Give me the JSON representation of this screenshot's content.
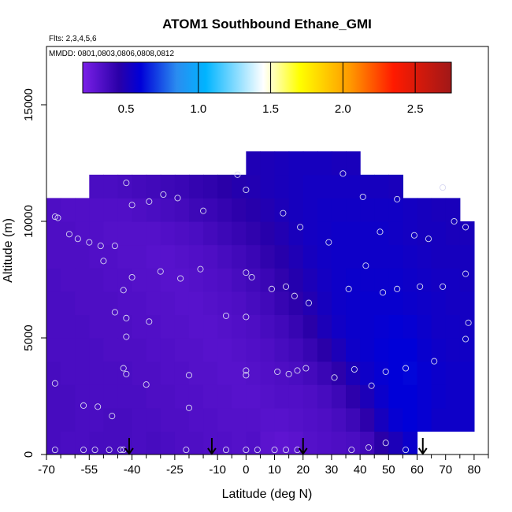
{
  "chart_data": {
    "type": "heatmap",
    "title": "ATOM1 Southbound Ethane_GMI",
    "flights_note": "Flts: 2,3,4,5,6",
    "dates_note": "MMDD: 0801,0803,0806,0808,0812",
    "xlabel": "Latitude (deg N)",
    "ylabel": "Altitude (m)",
    "xlim": [
      -70,
      85
    ],
    "ylim": [
      0,
      17500
    ],
    "x_ticks": [
      -70,
      -55,
      -40,
      -25,
      -10,
      0,
      10,
      20,
      30,
      40,
      50,
      60,
      70,
      80
    ],
    "x_tick_labels": [
      "-70",
      "-55",
      "-40",
      "-25",
      "-10",
      "0",
      "10",
      "20",
      "30",
      "40",
      "50",
      "60",
      "70",
      "80"
    ],
    "x_minor_ticks": [
      -65,
      -60,
      -50,
      -45,
      -35,
      -30,
      -20,
      -15,
      -5,
      5,
      15,
      25,
      35,
      45,
      55,
      65,
      75,
      85
    ],
    "y_ticks": [
      0,
      5000,
      10000,
      15000
    ],
    "y_tick_labels": [
      "0",
      "5000",
      "10000",
      "15000"
    ],
    "colorbar": {
      "min": 0.2,
      "max": 2.75,
      "ticks": [
        0.5,
        1.0,
        1.5,
        2.0,
        2.5
      ],
      "tick_labels": [
        "0.5",
        "1.0",
        "1.5",
        "2.0",
        "2.5"
      ],
      "divisions": [
        1.0,
        1.5,
        2.0,
        2.5
      ],
      "colors": [
        "#7b20e8",
        "#2a00a8",
        "#0000d8",
        "#2a8cf0",
        "#00b4ff",
        "#ffffff",
        "#ffff00",
        "#ff9900",
        "#ff1a00",
        "#a01818"
      ],
      "color_stops": [
        0.2,
        0.45,
        0.6,
        0.85,
        1.05,
        1.45,
        1.7,
        2.05,
        2.35,
        2.75
      ]
    },
    "latitude_bins": [
      -67.5,
      -62.5,
      -57.5,
      -52.5,
      -47.5,
      -42.5,
      -37.5,
      -32.5,
      -27.5,
      -22.5,
      -17.5,
      -12.5,
      -7.5,
      -2.5,
      2.5,
      7.5,
      12.5,
      17.5,
      22.5,
      27.5,
      32.5,
      37.5,
      42.5,
      47.5,
      52.5,
      57.5,
      62.5,
      67.5,
      72.5,
      77.5
    ],
    "altitude_bins": [
      500,
      1500,
      2500,
      3500,
      4500,
      5500,
      6500,
      7500,
      8500,
      9500,
      10500,
      11500,
      12500
    ],
    "field": [
      [
        0.36,
        0.35,
        0.35,
        0.36,
        0.36,
        0.36,
        0.35,
        0.36,
        0.35,
        0.34,
        0.34,
        0.33,
        0.33,
        0.32,
        0.33,
        0.3,
        0.29,
        0.3,
        0.32,
        0.33,
        0.34,
        0.35,
        0.38,
        0.45,
        0.5,
        0.56,
        null,
        null,
        null,
        null
      ],
      [
        0.36,
        0.36,
        0.35,
        0.35,
        0.36,
        0.36,
        0.35,
        0.35,
        0.34,
        0.34,
        0.33,
        0.33,
        0.32,
        0.32,
        0.32,
        0.31,
        0.31,
        0.32,
        0.33,
        0.34,
        0.36,
        0.39,
        0.44,
        0.52,
        0.58,
        0.6,
        0.58,
        0.55,
        0.55,
        0.55
      ],
      [
        0.36,
        0.36,
        0.35,
        0.35,
        0.35,
        0.35,
        0.35,
        0.34,
        0.34,
        0.33,
        0.33,
        0.32,
        0.32,
        0.31,
        0.31,
        0.32,
        0.33,
        0.33,
        0.34,
        0.36,
        0.39,
        0.44,
        0.5,
        0.56,
        0.6,
        0.6,
        0.58,
        0.56,
        0.55,
        0.55
      ],
      [
        0.36,
        0.35,
        0.35,
        0.35,
        0.35,
        0.35,
        0.34,
        0.34,
        0.33,
        0.33,
        0.32,
        0.32,
        0.31,
        0.31,
        0.32,
        0.33,
        0.34,
        0.35,
        0.37,
        0.4,
        0.44,
        0.5,
        0.55,
        0.58,
        0.6,
        0.61,
        0.58,
        0.56,
        0.55,
        0.55
      ],
      [
        0.35,
        0.35,
        0.35,
        0.35,
        0.34,
        0.34,
        0.34,
        0.33,
        0.33,
        0.32,
        0.32,
        0.31,
        0.31,
        0.32,
        0.33,
        0.34,
        0.36,
        0.38,
        0.41,
        0.45,
        0.5,
        0.55,
        0.57,
        0.59,
        0.6,
        0.6,
        0.57,
        0.55,
        0.54,
        0.54
      ],
      [
        0.35,
        0.35,
        0.35,
        0.34,
        0.34,
        0.34,
        0.33,
        0.33,
        0.32,
        0.32,
        0.31,
        0.31,
        0.32,
        0.33,
        0.34,
        0.36,
        0.38,
        0.41,
        0.45,
        0.5,
        0.54,
        0.56,
        0.57,
        0.58,
        0.59,
        0.58,
        0.56,
        0.54,
        0.54,
        0.53
      ],
      [
        0.35,
        0.35,
        0.34,
        0.34,
        0.34,
        0.33,
        0.33,
        0.32,
        0.32,
        0.31,
        0.31,
        0.32,
        0.33,
        0.34,
        0.36,
        0.38,
        0.41,
        0.44,
        0.48,
        0.52,
        0.55,
        0.56,
        0.57,
        0.57,
        0.57,
        0.56,
        0.55,
        0.54,
        0.53,
        0.53
      ],
      [
        0.35,
        0.34,
        0.34,
        0.34,
        0.33,
        0.33,
        0.32,
        0.32,
        0.31,
        0.31,
        0.32,
        0.33,
        0.34,
        0.36,
        0.38,
        0.4,
        0.43,
        0.47,
        0.5,
        0.53,
        0.55,
        0.56,
        0.56,
        0.56,
        0.56,
        0.55,
        0.54,
        0.53,
        0.53,
        0.52
      ],
      [
        0.34,
        0.34,
        0.34,
        0.33,
        0.33,
        0.32,
        0.32,
        0.31,
        0.31,
        0.32,
        0.33,
        0.34,
        0.36,
        0.38,
        0.4,
        0.43,
        0.46,
        0.49,
        0.52,
        0.54,
        0.55,
        0.55,
        0.55,
        0.55,
        0.55,
        0.54,
        0.53,
        0.52,
        0.52,
        0.52
      ],
      [
        0.34,
        0.34,
        0.33,
        0.33,
        0.32,
        0.32,
        0.32,
        0.32,
        0.33,
        0.34,
        0.35,
        0.37,
        0.39,
        0.41,
        0.43,
        0.46,
        0.48,
        0.51,
        0.53,
        0.54,
        0.55,
        0.55,
        0.55,
        0.55,
        0.54,
        0.53,
        0.52,
        0.52,
        0.51,
        0.51
      ],
      [
        0.34,
        0.33,
        0.33,
        0.33,
        0.33,
        0.33,
        0.34,
        0.35,
        0.36,
        0.37,
        0.39,
        0.4,
        0.42,
        0.44,
        0.46,
        0.48,
        0.5,
        0.52,
        0.53,
        0.54,
        0.54,
        0.54,
        0.54,
        0.54,
        0.54,
        0.53,
        0.52,
        0.51,
        0.51,
        null
      ],
      [
        null,
        null,
        null,
        0.35,
        0.35,
        0.36,
        0.37,
        0.38,
        0.39,
        0.4,
        0.42,
        0.43,
        0.45,
        0.47,
        0.48,
        0.5,
        0.51,
        0.52,
        0.53,
        0.53,
        0.53,
        0.53,
        0.52,
        0.52,
        0.51,
        null,
        null,
        null,
        null,
        null
      ],
      [
        null,
        null,
        null,
        null,
        null,
        null,
        null,
        null,
        null,
        null,
        null,
        null,
        null,
        null,
        0.49,
        0.5,
        0.51,
        0.52,
        0.52,
        0.52,
        0.51,
        0.51,
        null,
        null,
        null,
        null,
        null,
        null,
        null,
        null
      ]
    ],
    "samples": [
      [
        -67,
        200
      ],
      [
        -57,
        200
      ],
      [
        -53,
        200
      ],
      [
        -48,
        200
      ],
      [
        -44,
        200
      ],
      [
        -43,
        200
      ],
      [
        -21,
        200
      ],
      [
        -7,
        200
      ],
      [
        0,
        200
      ],
      [
        4,
        200
      ],
      [
        10,
        200
      ],
      [
        14,
        200
      ],
      [
        18,
        200
      ],
      [
        37,
        200
      ],
      [
        43,
        300
      ],
      [
        49,
        500
      ],
      [
        56,
        200
      ],
      [
        -67,
        3050
      ],
      [
        -57,
        2100
      ],
      [
        -52,
        2050
      ],
      [
        -47,
        1650
      ],
      [
        -43,
        3700
      ],
      [
        -42,
        3450
      ],
      [
        -35,
        3000
      ],
      [
        -20,
        3400
      ],
      [
        -20,
        2000
      ],
      [
        0,
        3600
      ],
      [
        0,
        3400
      ],
      [
        11,
        3550
      ],
      [
        15,
        3450
      ],
      [
        18,
        3600
      ],
      [
        21,
        3700
      ],
      [
        31,
        3300
      ],
      [
        38,
        3650
      ],
      [
        44,
        2950
      ],
      [
        49,
        3550
      ],
      [
        56,
        3700
      ],
      [
        66,
        4000
      ],
      [
        -42,
        5050
      ],
      [
        -42,
        5850
      ],
      [
        -46,
        6100
      ],
      [
        -34,
        5700
      ],
      [
        -7,
        5950
      ],
      [
        0,
        5900
      ],
      [
        77,
        4950
      ],
      [
        78,
        5650
      ],
      [
        -43,
        7050
      ],
      [
        -40,
        7600
      ],
      [
        -30,
        7850
      ],
      [
        -23,
        7550
      ],
      [
        -16,
        7950
      ],
      [
        0,
        7800
      ],
      [
        2,
        7600
      ],
      [
        9,
        7100
      ],
      [
        14,
        7200
      ],
      [
        17,
        6800
      ],
      [
        22,
        6500
      ],
      [
        36,
        7100
      ],
      [
        42,
        8100
      ],
      [
        48,
        6950
      ],
      [
        53,
        7100
      ],
      [
        61,
        7200
      ],
      [
        69,
        7200
      ],
      [
        77,
        7750
      ],
      [
        -67,
        10200
      ],
      [
        -66,
        10150
      ],
      [
        -62,
        9450
      ],
      [
        -59,
        9250
      ],
      [
        -55,
        9100
      ],
      [
        -51,
        8950
      ],
      [
        -50,
        8300
      ],
      [
        -46,
        8950
      ],
      [
        -40,
        10700
      ],
      [
        -34,
        10850
      ],
      [
        -29,
        11150
      ],
      [
        -24,
        11000
      ],
      [
        -15,
        10450
      ],
      [
        -3,
        12000
      ],
      [
        0,
        11350
      ],
      [
        13,
        10350
      ],
      [
        19,
        9750
      ],
      [
        29,
        9100
      ],
      [
        34,
        12050
      ],
      [
        41,
        11050
      ],
      [
        47,
        9550
      ],
      [
        53,
        10950
      ],
      [
        59,
        9400
      ],
      [
        64,
        9250
      ],
      [
        73,
        10000
      ],
      [
        77,
        9750
      ],
      [
        69,
        11450
      ],
      [
        -42,
        11650
      ]
    ],
    "flight_arrows": [
      -41,
      -12,
      20,
      62
    ]
  }
}
